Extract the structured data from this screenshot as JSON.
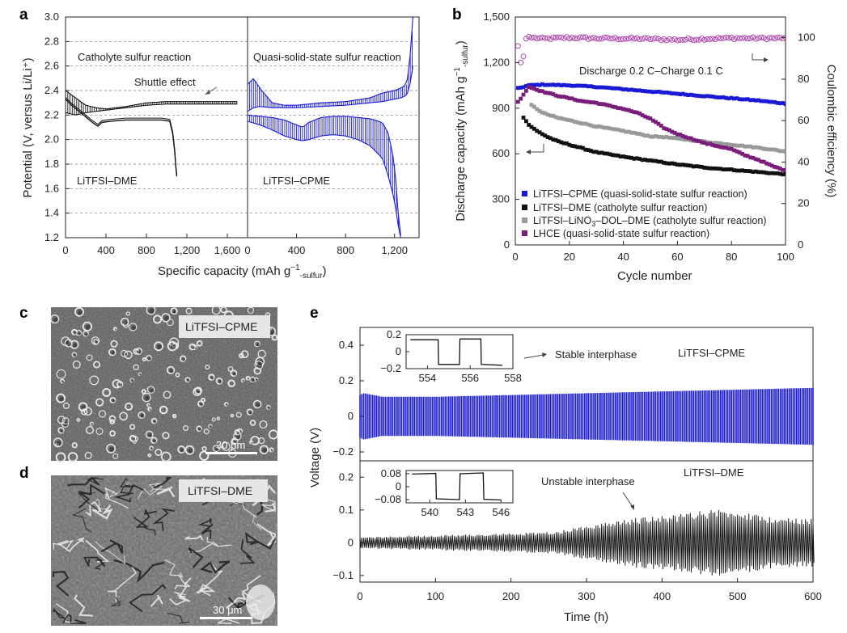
{
  "panel_labels": {
    "a": "a",
    "b": "b",
    "c": "c",
    "d": "d",
    "e": "e"
  },
  "chart_data": [
    {
      "panel": "a",
      "type": "line",
      "ylabel": "Potential (V, versus Li/Li⁺)",
      "xlabel": "Specific capacity (mAh g⁻¹₋ₛᵤₗₔᵤᵣ)",
      "xlabel_parts": {
        "main": "Specific capacity (mAh g",
        "sup": "−1",
        "sub": "-sulfur",
        "close": ")"
      },
      "ylim": [
        1.2,
        3.0
      ],
      "yticks": [
        "1.2",
        "1.4",
        "1.6",
        "1.8",
        "2.0",
        "2.2",
        "2.4",
        "2.6",
        "2.8",
        "3.0"
      ],
      "left": {
        "xlim": [
          0,
          1800
        ],
        "xticks": [
          "0",
          "400",
          "800",
          "1,200",
          "1,600"
        ],
        "title": "Catholyte sulfur reaction",
        "annotation": "Shuttle effect",
        "label": "LiTFSI–DME",
        "color": "#111111",
        "discharge": {
          "x": [
            0,
            60,
            150,
            250,
            300,
            320,
            360,
            450,
            600,
            800,
            950,
            1030,
            1060,
            1080,
            1090,
            1100
          ],
          "y": [
            2.33,
            2.28,
            2.22,
            2.15,
            2.12,
            2.11,
            2.14,
            2.15,
            2.16,
            2.16,
            2.16,
            2.15,
            2.05,
            1.9,
            1.78,
            1.7
          ]
        },
        "charge_band": {
          "x": [
            0,
            100,
            200,
            300,
            400,
            600,
            800,
            1000,
            1200,
            1400,
            1600,
            1700
          ],
          "low": [
            2.22,
            2.2,
            2.22,
            2.23,
            2.24,
            2.26,
            2.28,
            2.29,
            2.29,
            2.29,
            2.29,
            2.29
          ],
          "high": [
            2.4,
            2.34,
            2.28,
            2.26,
            2.25,
            2.27,
            2.3,
            2.31,
            2.31,
            2.31,
            2.31,
            2.31
          ]
        }
      },
      "right": {
        "xlim": [
          0,
          1400
        ],
        "xticks": [
          "0",
          "400",
          "800",
          "1,200"
        ],
        "title": "Quasi-solid-state sulfur reaction",
        "label": "LiTFSI–CPME",
        "color": "#1a1ad6",
        "discharge_band": {
          "x": [
            0,
            100,
            200,
            300,
            400,
            450,
            500,
            600,
            700,
            800,
            900,
            1000,
            1100,
            1150,
            1200,
            1230,
            1250
          ],
          "high": [
            2.2,
            2.19,
            2.18,
            2.16,
            2.12,
            2.1,
            2.14,
            2.18,
            2.19,
            2.19,
            2.18,
            2.17,
            2.14,
            2.05,
            1.8,
            1.4,
            1.22
          ],
          "low": [
            2.15,
            2.12,
            2.08,
            2.03,
            2.0,
            1.99,
            2.0,
            2.03,
            2.04,
            2.03,
            2.0,
            1.95,
            1.85,
            1.7,
            1.5,
            1.3,
            1.2
          ]
        },
        "charge_band": {
          "x": [
            0,
            50,
            100,
            200,
            300,
            400,
            600,
            800,
            1000,
            1100,
            1200,
            1250,
            1300,
            1340,
            1350
          ],
          "low": [
            2.23,
            2.26,
            2.27,
            2.26,
            2.26,
            2.26,
            2.27,
            2.28,
            2.3,
            2.31,
            2.33,
            2.34,
            2.36,
            2.5,
            2.6
          ],
          "high": [
            2.45,
            2.5,
            2.42,
            2.3,
            2.28,
            2.28,
            2.3,
            2.31,
            2.34,
            2.38,
            2.4,
            2.42,
            2.45,
            2.8,
            3.0
          ]
        }
      }
    },
    {
      "panel": "b",
      "type": "scatter",
      "xlabel": "Cycle number",
      "ylabel_parts": {
        "main": "Discharge capacity (mAh g",
        "sup": "−1",
        "sub": "-sulfur",
        "close": ")"
      },
      "ylabel2": "Coulombic efficiency (%)",
      "xlim": [
        0,
        100
      ],
      "ylim": [
        0,
        1500
      ],
      "y2lim": [
        0,
        110
      ],
      "xticks": [
        "0",
        "20",
        "40",
        "60",
        "80",
        "100"
      ],
      "yticks": [
        "0",
        "300",
        "600",
        "900",
        "1,200",
        "1,500"
      ],
      "y2ticks": [
        "0",
        "20",
        "40",
        "60",
        "80",
        "100"
      ],
      "annotation": "Discharge 0.2 C–Charge 0.1 C",
      "legend_position": "bottom-left",
      "series": [
        {
          "name": "LiTFSI–CPME (quasi-solid-state sulfur reaction)",
          "color": "#1a1ad6",
          "x": [
            1,
            5,
            10,
            20,
            30,
            40,
            50,
            60,
            70,
            80,
            90,
            100
          ],
          "y": [
            1030,
            1050,
            1055,
            1050,
            1040,
            1025,
            1010,
            995,
            980,
            965,
            950,
            930
          ]
        },
        {
          "name": "LiTFSI–DME (catholyte sulfur reaction)",
          "color": "#111111",
          "x": [
            3,
            5,
            8,
            12,
            16,
            20,
            25,
            30,
            40,
            50,
            60,
            70,
            80,
            90,
            100
          ],
          "y": [
            840,
            790,
            750,
            710,
            680,
            660,
            635,
            610,
            580,
            555,
            530,
            510,
            495,
            480,
            465
          ]
        },
        {
          "name": "LiTFSI–LiNO₃–DOL–DME (catholyte sulfur reaction)",
          "name_parts": {
            "pre": "LiTFSI–LiNO",
            "sub": "3",
            "post": "–DOL–DME (catholyte sulfur reaction)"
          },
          "color": "#999999",
          "x": [
            6,
            10,
            15,
            20,
            25,
            30,
            40,
            50,
            55,
            60,
            70,
            80,
            90,
            100
          ],
          "y": [
            920,
            870,
            840,
            820,
            800,
            780,
            750,
            715,
            710,
            700,
            680,
            660,
            640,
            615
          ]
        },
        {
          "name": "LHCE (quasi-solid-state sulfur reaction)",
          "color": "#7a1d7a",
          "x": [
            1,
            5,
            10,
            15,
            20,
            25,
            30,
            35,
            40,
            45,
            50,
            55,
            60,
            65,
            70,
            75,
            80,
            85,
            90,
            95,
            100
          ],
          "y": [
            940,
            1040,
            1010,
            985,
            965,
            945,
            935,
            915,
            895,
            870,
            830,
            770,
            730,
            700,
            670,
            650,
            630,
            590,
            560,
            520,
            490
          ]
        }
      ],
      "coulombic_efficiency": {
        "color": "#b04ab0",
        "x": [
          1,
          2,
          3,
          4,
          5,
          6,
          8,
          10,
          15,
          20,
          30,
          40,
          50,
          60,
          70,
          80,
          90,
          100
        ],
        "y": [
          96,
          88,
          91,
          99.5,
          100.5,
          100,
          99.8,
          99.5,
          99.8,
          100,
          99.7,
          99.6,
          99.4,
          99.0,
          99.5,
          99.8,
          99.7,
          99.8
        ]
      }
    },
    {
      "panel": "e",
      "type": "line",
      "xlabel": "Time (h)",
      "ylabel": "Voltage (V)",
      "xlim": [
        0,
        600
      ],
      "xticks": [
        "0",
        "100",
        "200",
        "300",
        "400",
        "500",
        "600"
      ],
      "top": {
        "label": "LiTFSI–CPME",
        "annotation": "Stable interphase",
        "color": "#1a1ad6",
        "ylim": [
          -0.25,
          0.5
        ],
        "yticks": [
          "−0.2",
          "0",
          "0.2",
          "0.4"
        ],
        "amplitude": {
          "x": [
            0,
            5,
            30,
            100,
            200,
            300,
            400,
            500,
            600
          ],
          "y": [
            0.12,
            0.13,
            0.11,
            0.11,
            0.12,
            0.13,
            0.14,
            0.15,
            0.16
          ]
        },
        "inset": {
          "xlim": [
            553,
            558
          ],
          "ylim": [
            -0.2,
            0.2
          ],
          "xticks": [
            "554",
            "556",
            "558"
          ],
          "yticks": [
            "−0.2",
            "0",
            "0.2"
          ],
          "x": [
            553.2,
            554.5,
            554.52,
            555.5,
            555.52,
            556.5,
            556.52,
            557.5
          ],
          "y": [
            0.14,
            0.14,
            -0.15,
            -0.15,
            0.15,
            0.15,
            -0.15,
            -0.16
          ]
        }
      },
      "bottom": {
        "label": "LiTFSI–DME",
        "annotation": "Unstable interphase",
        "color": "#111111",
        "ylim": [
          -0.12,
          0.25
        ],
        "yticks": [
          "−0.1",
          "0",
          "0.1",
          "0.2"
        ],
        "amplitude": {
          "x": [
            0,
            100,
            200,
            260,
            300,
            340,
            380,
            420,
            450,
            480,
            510,
            540,
            570,
            600
          ],
          "y": [
            0.015,
            0.02,
            0.025,
            0.03,
            0.045,
            0.06,
            0.07,
            0.075,
            0.085,
            0.09,
            0.08,
            0.07,
            0.065,
            0.065
          ]
        },
        "inset": {
          "xlim": [
            538,
            547
          ],
          "ylim": [
            -0.1,
            0.1
          ],
          "xticks": [
            "540",
            "543",
            "546"
          ],
          "yticks": [
            "−0.08",
            "0",
            "0.08"
          ],
          "x": [
            538.5,
            540.5,
            540.55,
            542.5,
            542.55,
            544.5,
            544.55,
            546
          ],
          "y": [
            0.078,
            0.082,
            -0.075,
            -0.08,
            0.08,
            0.085,
            -0.078,
            -0.082
          ]
        }
      }
    }
  ],
  "sem": {
    "c": {
      "label": "LiTFSI–CPME",
      "scale": "30 μm"
    },
    "d": {
      "label": "LiTFSI–DME",
      "scale": "30 μm"
    }
  }
}
